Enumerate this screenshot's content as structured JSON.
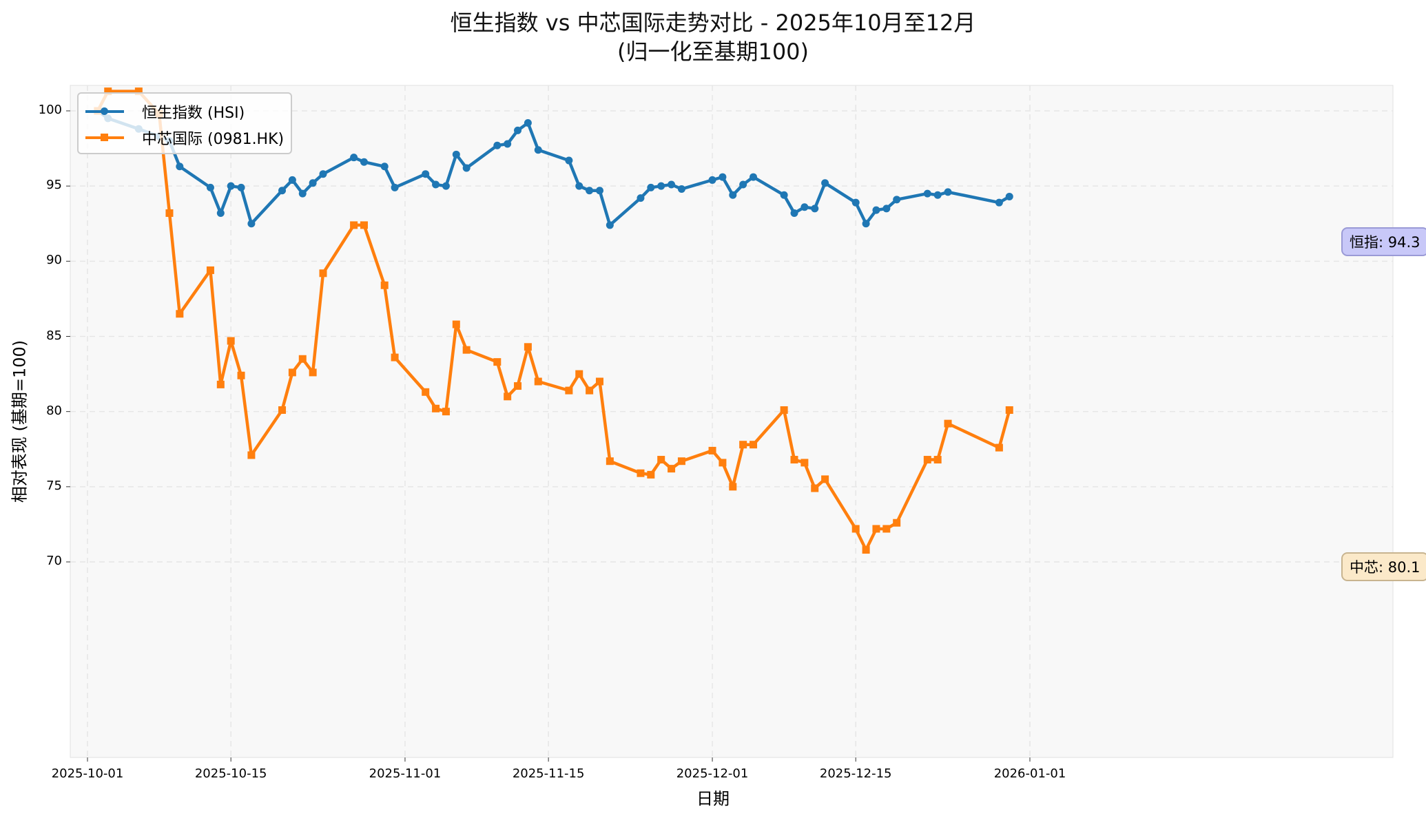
{
  "title": {
    "line1": "恒生指数 vs 中芯国际走势对比 - 2025年10月至12月",
    "line2": "(归一化至基期100)"
  },
  "axes": {
    "xlabel": "日期",
    "ylabel": "相对表现 (基期=100)",
    "yticks": [
      "100",
      "95",
      "90",
      "85",
      "80",
      "75",
      "70"
    ],
    "xticks": [
      "2025-10-01",
      "2025-10-15",
      "2025-11-01",
      "2025-11-15",
      "2025-12-01",
      "2025-12-15",
      "2026-01-01"
    ]
  },
  "legend": {
    "items": [
      {
        "label": "恒生指数 (HSI)",
        "color": "#1f77b4",
        "marker": "circle"
      },
      {
        "label": "中芯国际 (0981.HK)",
        "color": "#ff7f0e",
        "marker": "square"
      }
    ]
  },
  "annotations": {
    "hsi": {
      "text": "恒指: 94.3",
      "bg": "#c8c8f8",
      "border": "#9a9ad6"
    },
    "smic": {
      "text": "中芯: 80.1",
      "bg": "#fbe9c9",
      "border": "#c8b48f"
    }
  },
  "colors": {
    "hsi": "#1f77b4",
    "smic": "#ff7f0e",
    "plot_bg": "#f8f8f8",
    "grid": "#e6e6e6"
  },
  "chart_data": {
    "type": "line",
    "title": "恒生指数 vs 中芯国际走势对比 - 2025年10月至12月 (归一化至基期100)",
    "xlabel": "日期",
    "ylabel": "相对表现 (基期=100)",
    "ylim": [
      69.3,
      103.1
    ],
    "xlim": [
      "2025-09-27",
      "2026-01-03"
    ],
    "grid": true,
    "legend_position": "upper left",
    "x": [
      "2025-10-02",
      "2025-10-03",
      "2025-10-06",
      "2025-10-08",
      "2025-10-09",
      "2025-10-10",
      "2025-10-13",
      "2025-10-14",
      "2025-10-15",
      "2025-10-16",
      "2025-10-17",
      "2025-10-20",
      "2025-10-21",
      "2025-10-22",
      "2025-10-23",
      "2025-10-24",
      "2025-10-27",
      "2025-10-28",
      "2025-10-30",
      "2025-10-31",
      "2025-11-03",
      "2025-11-04",
      "2025-11-05",
      "2025-11-06",
      "2025-11-07",
      "2025-11-10",
      "2025-11-11",
      "2025-11-12",
      "2025-11-13",
      "2025-11-14",
      "2025-11-17",
      "2025-11-18",
      "2025-11-19",
      "2025-11-20",
      "2025-11-21",
      "2025-11-24",
      "2025-11-25",
      "2025-11-26",
      "2025-11-27",
      "2025-11-28",
      "2025-12-01",
      "2025-12-02",
      "2025-12-03",
      "2025-12-04",
      "2025-12-05",
      "2025-12-08",
      "2025-12-09",
      "2025-12-10",
      "2025-12-11",
      "2025-12-12",
      "2025-12-15",
      "2025-12-16",
      "2025-12-17",
      "2025-12-18",
      "2025-12-19",
      "2025-12-22",
      "2025-12-23",
      "2025-12-24",
      "2025-12-29",
      "2025-12-30"
    ],
    "series": [
      {
        "name": "恒生指数 (HSI)",
        "color": "#1f77b4",
        "marker": "circle",
        "values": [
          100.0,
          99.5,
          98.8,
          98.3,
          98.0,
          96.3,
          94.9,
          93.2,
          95.0,
          94.9,
          92.5,
          94.7,
          95.4,
          94.5,
          95.2,
          95.8,
          96.9,
          96.6,
          96.3,
          94.9,
          95.8,
          95.1,
          95.0,
          97.1,
          96.2,
          97.7,
          97.8,
          98.7,
          99.2,
          97.4,
          96.7,
          95.0,
          94.7,
          94.7,
          92.4,
          94.2,
          94.9,
          95.0,
          95.1,
          94.8,
          95.4,
          95.6,
          94.4,
          95.1,
          95.6,
          94.4,
          93.2,
          93.6,
          93.5,
          95.2,
          93.9,
          92.5,
          93.4,
          93.5,
          94.1,
          94.5,
          94.4,
          94.6,
          93.9,
          94.3
        ]
      },
      {
        "name": "中芯国际 (0981.HK)",
        "color": "#ff7f0e",
        "marker": "square",
        "values": [
          100.0,
          101.3,
          101.3,
          99.8,
          93.2,
          86.5,
          89.4,
          81.8,
          84.7,
          82.4,
          77.1,
          80.1,
          82.6,
          83.5,
          82.6,
          89.2,
          92.4,
          92.4,
          88.4,
          83.6,
          81.3,
          80.2,
          80.0,
          85.8,
          84.1,
          83.3,
          81.0,
          81.7,
          84.3,
          82.0,
          81.4,
          82.5,
          81.4,
          82.0,
          76.7,
          75.9,
          75.8,
          76.8,
          76.2,
          76.7,
          77.4,
          76.6,
          75.0,
          77.8,
          77.8,
          80.1,
          76.8,
          76.6,
          74.9,
          75.5,
          72.2,
          70.8,
          72.2,
          72.2,
          72.6,
          76.8,
          76.8,
          79.2,
          77.6,
          80.1
        ]
      }
    ],
    "annotations": [
      {
        "text": "恒指: 94.3",
        "x": "2025-12-30",
        "y": 94.3
      },
      {
        "text": "中芯: 80.1",
        "x": "2025-12-30",
        "y": 80.1
      }
    ]
  }
}
